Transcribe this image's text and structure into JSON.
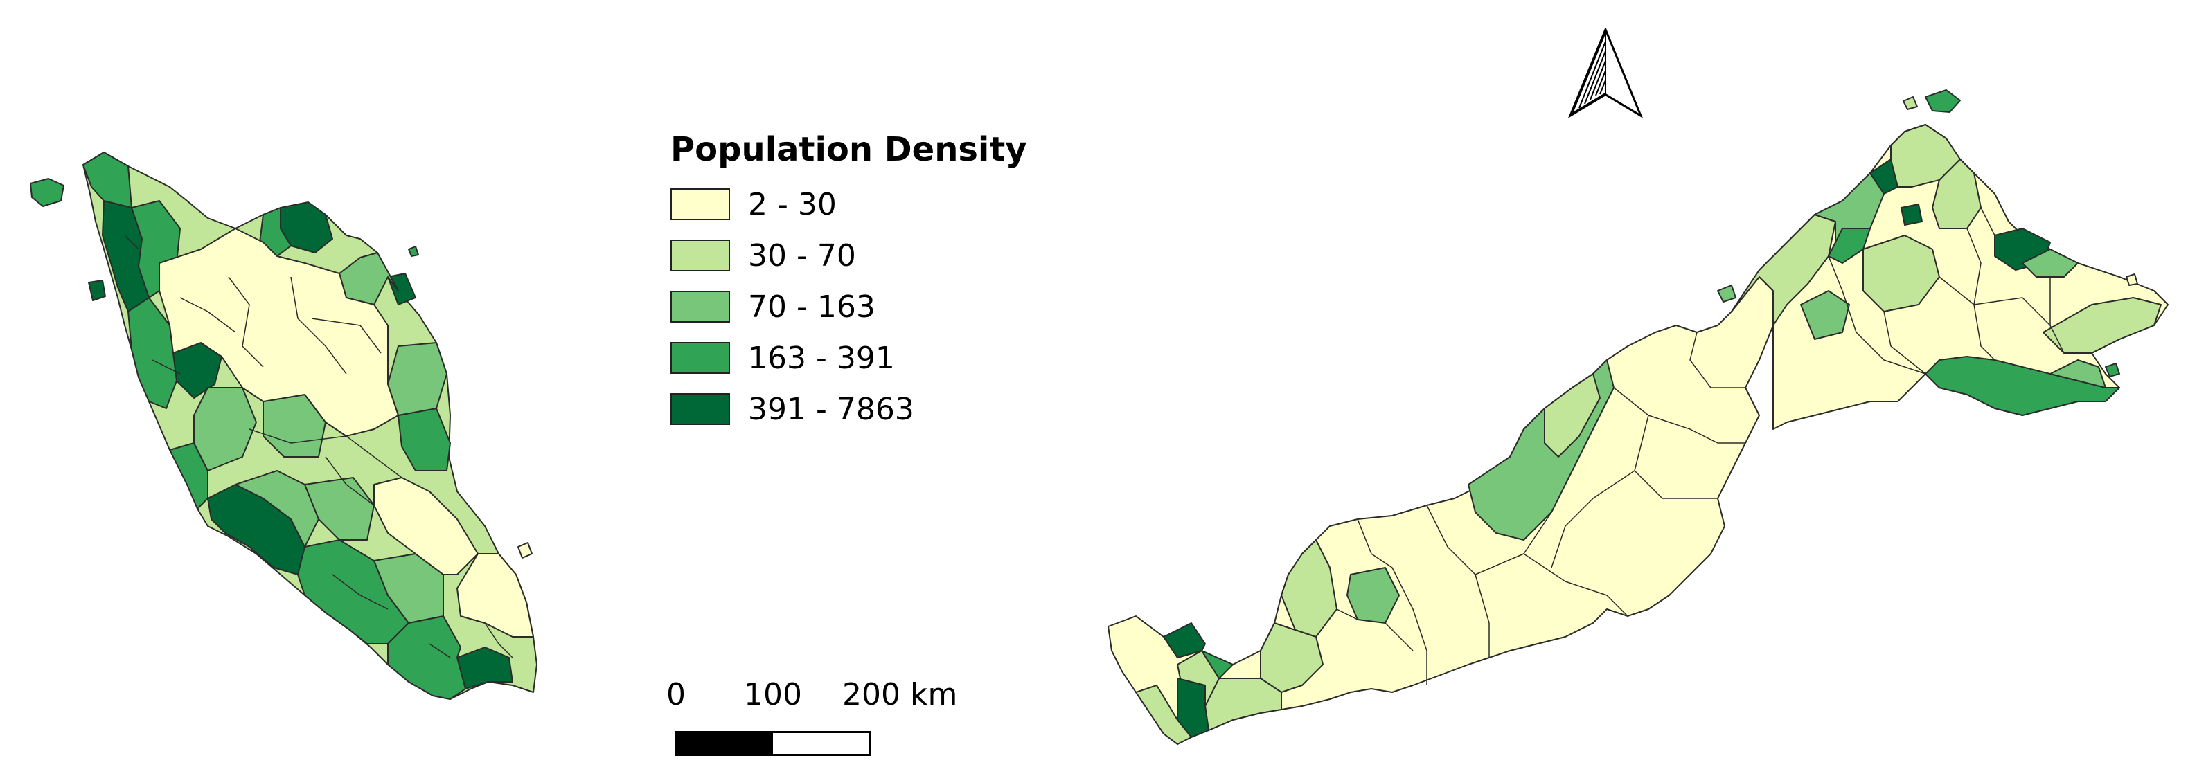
{
  "legend": {
    "title": "Population Density",
    "classes": [
      {
        "label": "2 - 30",
        "color": "#ffffcc"
      },
      {
        "label": "30 - 70",
        "color": "#c2e699"
      },
      {
        "label": "70 - 163",
        "color": "#78c679"
      },
      {
        "label": "163 - 391",
        "color": "#31a354"
      },
      {
        "label": "391 - 7863",
        "color": "#006837"
      }
    ]
  },
  "scale_bar": {
    "ticks": [
      "0",
      "100",
      "200 km"
    ],
    "colors": [
      "#000000",
      "#ffffff"
    ]
  },
  "north_arrow": {
    "icon": "north-arrow-icon"
  },
  "colors": {
    "boundary": "#2b2b2b",
    "background": "#ffffff"
  }
}
